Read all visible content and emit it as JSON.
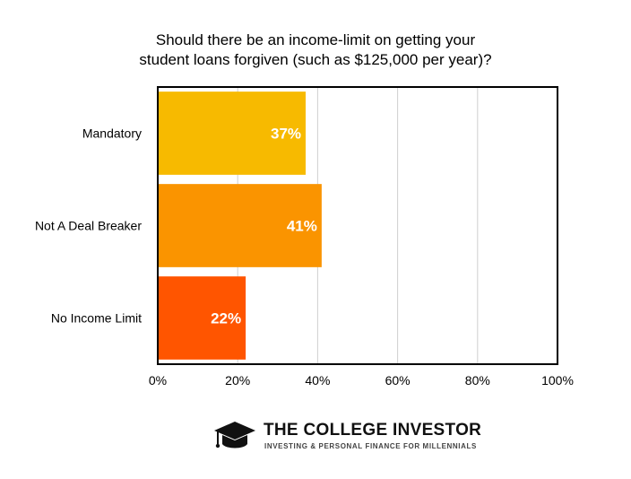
{
  "chart_data": {
    "type": "bar",
    "orientation": "horizontal",
    "title_lines": [
      "Should there be an income-limit on getting your",
      "student loans forgiven (such as $125,000 per year)?"
    ],
    "categories": [
      "Mandatory",
      "Not A Deal Breaker",
      "No Income Limit"
    ],
    "values": [
      37,
      41,
      22
    ],
    "value_labels": [
      "37%",
      "41%",
      "22%"
    ],
    "bar_colors": [
      "#F7BA00",
      "#FA9400",
      "#FF5500"
    ],
    "xlim": [
      0,
      100
    ],
    "x_ticks": [
      0,
      20,
      40,
      60,
      80,
      100
    ],
    "x_tick_labels": [
      "0%",
      "20%",
      "40%",
      "60%",
      "80%",
      "100%"
    ],
    "grid": "vertical",
    "legend": "none",
    "xlabel": "",
    "ylabel": ""
  },
  "branding": {
    "icon": "graduation-cap-icon",
    "name": "THE COLLEGE INVESTOR",
    "tagline": "INVESTING & PERSONAL FINANCE FOR MILLENNIALS"
  }
}
